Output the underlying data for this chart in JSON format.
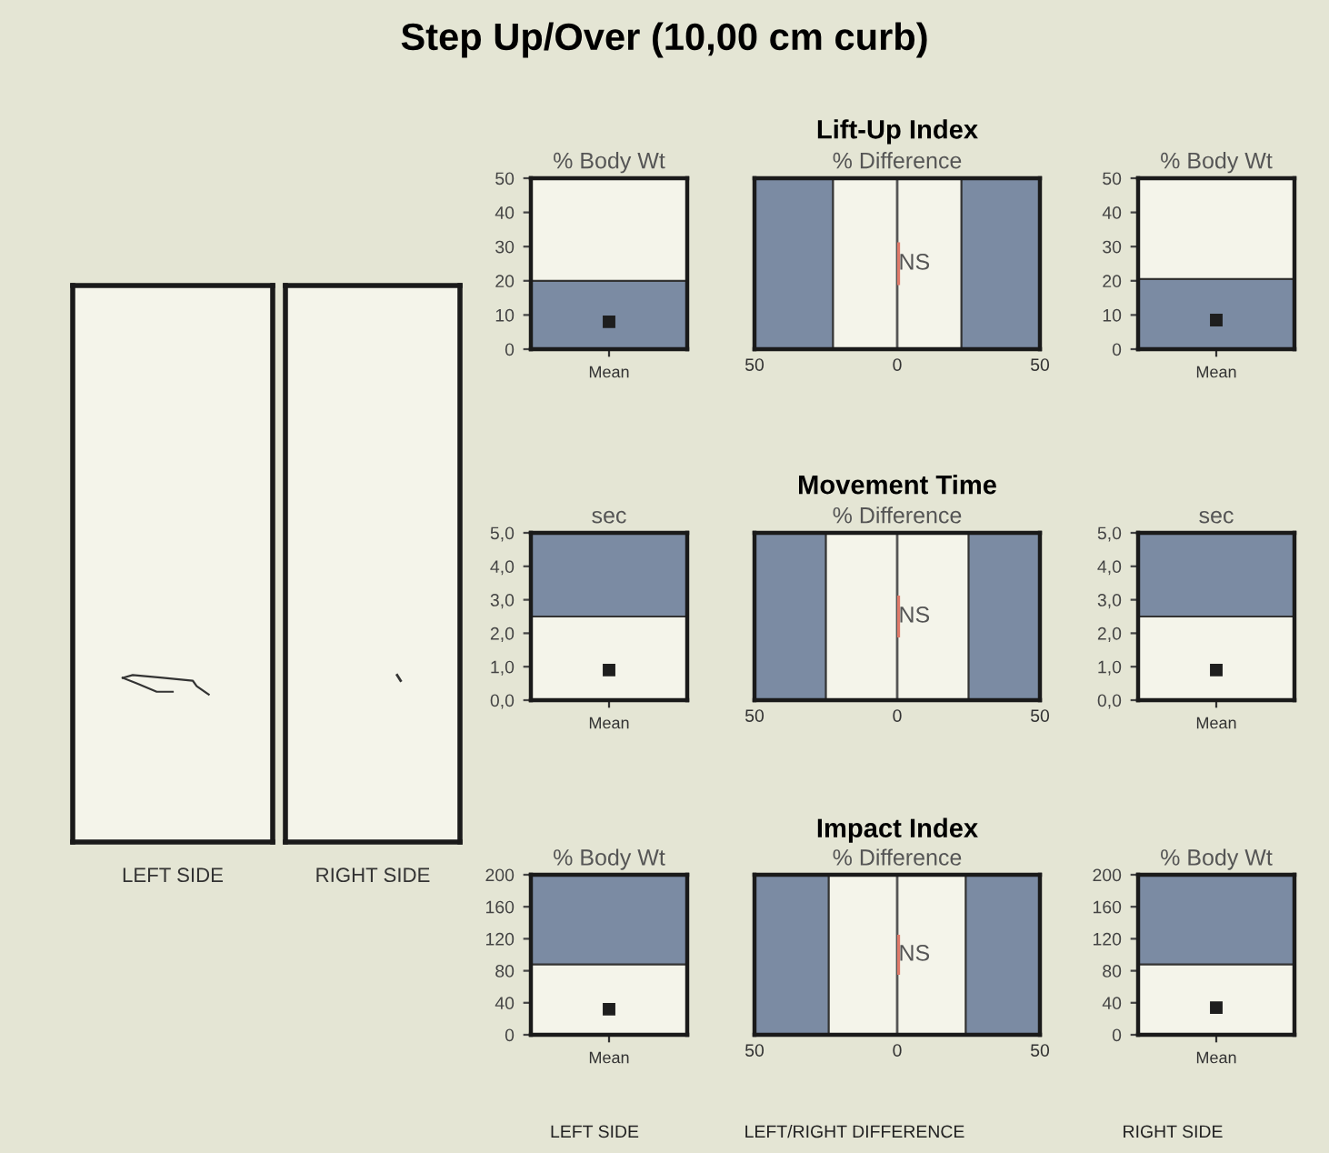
{
  "chart_data": [
    {
      "type": "other",
      "title": "Step Up/Over (10,00 cm curb)",
      "annotations": [
        "LEFT SIDE",
        "LEFT/RIGHT DIFFERENCE",
        "RIGHT SIDE"
      ]
    },
    {
      "type": "other",
      "xlabel": "LEFT SIDE"
    },
    {
      "type": "other",
      "xlabel": "RIGHT SIDE"
    },
    {
      "type": "scatter",
      "ylabel": "% Body Wt",
      "categories": [
        "Mean"
      ],
      "series": [
        {
          "color": "#1e1e1e",
          "values": [
            8
          ]
        }
      ],
      "marker": "square",
      "ylim": [
        0,
        50
      ],
      "yticks": [
        0,
        10,
        20,
        30,
        40,
        50
      ],
      "bands": [
        {
          "axis": "y",
          "from": 0,
          "to": 20,
          "color": "#7b8ba3"
        }
      ]
    },
    {
      "type": "bar",
      "orientation": "horizontal",
      "categories": [
        null
      ],
      "series": [
        {
          "color": "#e07a6a",
          "values": [
            1
          ]
        }
      ],
      "title": "Lift-Up Index",
      "subtitle": "% Difference",
      "xlim": [
        -50,
        50
      ],
      "xticks": [
        {
          "value": -50,
          "label": "50"
        },
        {
          "value": 0,
          "label": "0"
        },
        {
          "value": 50,
          "label": "50"
        }
      ],
      "bands": [
        {
          "axis": "x",
          "from": -50,
          "to": -22.5,
          "color": "#7b8ba3"
        },
        {
          "axis": "x",
          "from": 22.5,
          "to": 50,
          "color": "#7b8ba3"
        }
      ],
      "ref_lines": [
        {
          "axis": "x",
          "value": 0,
          "color": "#555555"
        }
      ],
      "annotations": [
        "NS"
      ]
    },
    {
      "type": "scatter",
      "ylabel": "% Body Wt",
      "categories": [
        "Mean"
      ],
      "series": [
        {
          "color": "#1e1e1e",
          "values": [
            8.5
          ]
        }
      ],
      "marker": "square",
      "ylim": [
        0,
        50
      ],
      "yticks": [
        0,
        10,
        20,
        30,
        40,
        50
      ],
      "bands": [
        {
          "axis": "y",
          "from": 0,
          "to": 20.5,
          "color": "#7b8ba3"
        }
      ]
    },
    {
      "type": "scatter",
      "ylabel": "sec",
      "categories": [
        "Mean"
      ],
      "series": [
        {
          "color": "#1e1e1e",
          "values": [
            0.9
          ]
        }
      ],
      "marker": "square",
      "ylim": [
        0,
        5
      ],
      "yticks": [
        {
          "value": 0,
          "label": "0,0"
        },
        {
          "value": 1,
          "label": "1,0"
        },
        {
          "value": 2,
          "label": "2,0"
        },
        {
          "value": 3,
          "label": "3,0"
        },
        {
          "value": 4,
          "label": "4,0"
        },
        {
          "value": 5,
          "label": "5,0"
        }
      ],
      "bands": [
        {
          "axis": "y",
          "from": 2.5,
          "to": 5,
          "color": "#7b8ba3"
        }
      ]
    },
    {
      "type": "bar",
      "orientation": "horizontal",
      "categories": [
        null
      ],
      "series": [
        {
          "color": "#e07a6a",
          "values": [
            1
          ]
        }
      ],
      "title": "Movement Time",
      "subtitle": "% Difference",
      "xlim": [
        -50,
        50
      ],
      "xticks": [
        {
          "value": -50,
          "label": "50"
        },
        {
          "value": 0,
          "label": "0"
        },
        {
          "value": 50,
          "label": "50"
        }
      ],
      "bands": [
        {
          "axis": "x",
          "from": -50,
          "to": -25,
          "color": "#7b8ba3"
        },
        {
          "axis": "x",
          "from": 25,
          "to": 50,
          "color": "#7b8ba3"
        }
      ],
      "ref_lines": [
        {
          "axis": "x",
          "value": 0,
          "color": "#555555"
        }
      ],
      "annotations": [
        "NS"
      ]
    },
    {
      "type": "scatter",
      "ylabel": "sec",
      "categories": [
        "Mean"
      ],
      "series": [
        {
          "color": "#1e1e1e",
          "values": [
            0.9
          ]
        }
      ],
      "marker": "square",
      "ylim": [
        0,
        5
      ],
      "yticks": [
        {
          "value": 0,
          "label": "0,0"
        },
        {
          "value": 1,
          "label": "1,0"
        },
        {
          "value": 2,
          "label": "2,0"
        },
        {
          "value": 3,
          "label": "3,0"
        },
        {
          "value": 4,
          "label": "4,0"
        },
        {
          "value": 5,
          "label": "5,0"
        }
      ],
      "bands": [
        {
          "axis": "y",
          "from": 2.5,
          "to": 5,
          "color": "#7b8ba3"
        }
      ]
    },
    {
      "type": "scatter",
      "ylabel": "% Body Wt",
      "categories": [
        "Mean"
      ],
      "series": [
        {
          "color": "#1e1e1e",
          "values": [
            32
          ]
        }
      ],
      "marker": "square",
      "ylim": [
        0,
        200
      ],
      "yticks": [
        0,
        40,
        80,
        120,
        160,
        200
      ],
      "bands": [
        {
          "axis": "y",
          "from": 88,
          "to": 200,
          "color": "#7b8ba3"
        }
      ]
    },
    {
      "type": "bar",
      "orientation": "horizontal",
      "categories": [
        null
      ],
      "series": [
        {
          "color": "#e07a6a",
          "values": [
            1
          ]
        }
      ],
      "title": "Impact Index",
      "subtitle": "% Difference",
      "xlim": [
        -50,
        50
      ],
      "xticks": [
        {
          "value": -50,
          "label": "50"
        },
        {
          "value": 0,
          "label": "0"
        },
        {
          "value": 50,
          "label": "50"
        }
      ],
      "bands": [
        {
          "axis": "x",
          "from": -50,
          "to": -24,
          "color": "#7b8ba3"
        },
        {
          "axis": "x",
          "from": 24,
          "to": 50,
          "color": "#7b8ba3"
        }
      ],
      "ref_lines": [
        {
          "axis": "x",
          "value": 0,
          "color": "#555555"
        }
      ],
      "annotations": [
        "NS"
      ]
    },
    {
      "type": "scatter",
      "ylabel": "% Body Wt",
      "categories": [
        "Mean"
      ],
      "series": [
        {
          "color": "#1e1e1e",
          "values": [
            34
          ]
        }
      ],
      "marker": "square",
      "ylim": [
        0,
        200
      ],
      "yticks": [
        0,
        40,
        80,
        120,
        160,
        200
      ],
      "bands": [
        {
          "axis": "y",
          "from": 88,
          "to": 200,
          "color": "#7b8ba3"
        }
      ]
    }
  ]
}
